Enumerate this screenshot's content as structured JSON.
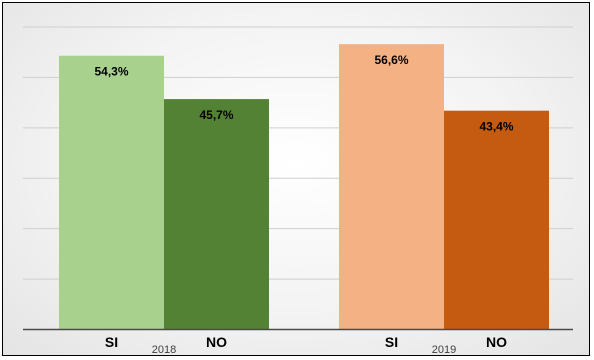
{
  "chart_data": {
    "type": "bar",
    "groups": [
      {
        "label": "2018",
        "bars": [
          {
            "category": "SI",
            "value": 54.3,
            "label": "54,3%",
            "color": "#a9d18e"
          },
          {
            "category": "NO",
            "value": 45.7,
            "label": "45,7%",
            "color": "#548235"
          }
        ]
      },
      {
        "label": "2019",
        "bars": [
          {
            "category": "SI",
            "value": 56.6,
            "label": "56,6%",
            "color": "#f4b183"
          },
          {
            "category": "NO",
            "value": 43.4,
            "label": "43,4%",
            "color": "#c55a11"
          }
        ]
      }
    ],
    "ylim": [
      0,
      60
    ],
    "grid": true,
    "title": "",
    "xlabel": "",
    "ylabel": ""
  }
}
